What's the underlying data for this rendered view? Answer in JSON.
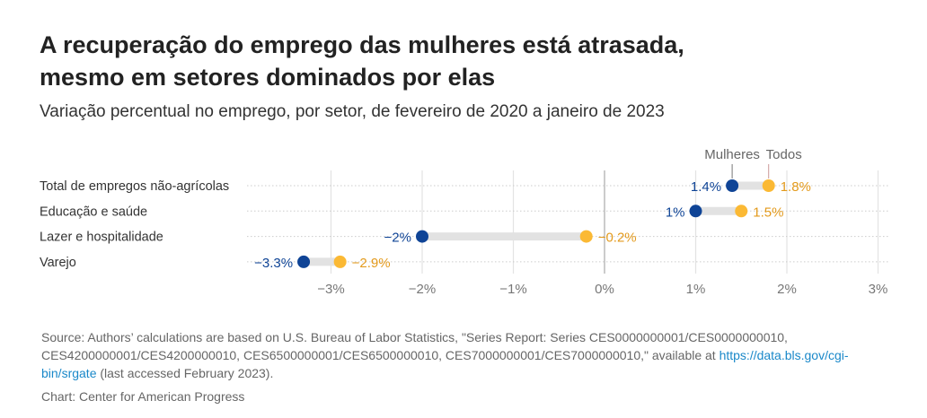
{
  "title_line1": "A recuperação do emprego das mulheres está atrasada,",
  "title_line2": "mesmo em setores dominados por elas",
  "subtitle": "Variação percentual no emprego, por setor, de fevereiro de 2020 a janeiro de 2023",
  "source_pre": "Source: Authors’ calculations are based on U.S. Bureau of Labor Statistics, \"Series Report: Series CES0000000001/CES0000000010, CES4200000001/CES4200000010, CES6500000001/CES6500000010, CES7000000001/CES7000000010,\" available at ",
  "source_link": "https://data.bls.gov/cgi-bin/srgate",
  "source_post": " (last accessed February 2023).",
  "credit": "Chart: Center for American Progress",
  "chart_data": {
    "type": "dumbbell",
    "categories": [
      "Total de empregos não-agrícolas",
      "Educação e saúde",
      "Lazer e hospitalidade",
      "Varejo"
    ],
    "series": [
      {
        "name": "Mulheres",
        "values": [
          1.4,
          1,
          -2,
          -3.3
        ],
        "labels": [
          "1.4%",
          "1%",
          "−2%",
          "−3.3%"
        ],
        "color": "#0f4496"
      },
      {
        "name": "Todos",
        "values": [
          1.8,
          1.5,
          -0.2,
          -2.9
        ],
        "labels": [
          "1.8%",
          "1.5%",
          "−0.2%",
          "−2.9%"
        ],
        "color": "#fbb934",
        "label_color": "#e39a1c"
      }
    ],
    "xlim": [
      -3.3,
      3
    ],
    "xticks": [
      -3,
      -2,
      -1,
      0,
      1,
      2,
      3
    ],
    "xtick_labels": [
      "−3%",
      "−2%",
      "−1%",
      "0%",
      "1%",
      "2%",
      "3%"
    ],
    "grid": true
  }
}
